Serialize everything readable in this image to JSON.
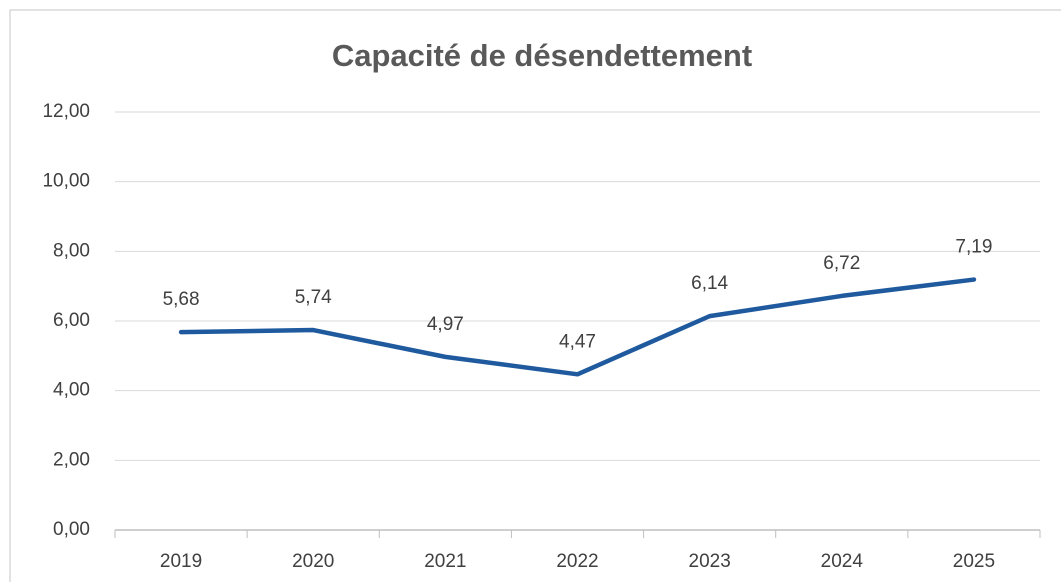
{
  "chart_data": {
    "type": "line",
    "title": "Capacité de désendettement",
    "categories": [
      "2019",
      "2020",
      "2021",
      "2022",
      "2023",
      "2024",
      "2025"
    ],
    "series": [
      {
        "color": "#1f5a9e",
        "values": [
          5.68,
          5.74,
          4.97,
          4.47,
          6.14,
          6.72,
          7.19
        ],
        "value_labels": [
          "5,68",
          "5,74",
          "4,97",
          "4,47",
          "6,14",
          "6,72",
          "7,19"
        ]
      }
    ],
    "reference_line": {
      "value": 10,
      "color": "#c0504d"
    },
    "ylim": [
      0,
      12
    ],
    "yticks": [
      {
        "value": 0,
        "label": "0,00"
      },
      {
        "value": 2,
        "label": "2,00"
      },
      {
        "value": 4,
        "label": "4,00"
      },
      {
        "value": 6,
        "label": "6,00"
      },
      {
        "value": 8,
        "label": "8,00"
      },
      {
        "value": 10,
        "label": "10,00"
      },
      {
        "value": 12,
        "label": "12,00"
      }
    ],
    "grid": true
  }
}
